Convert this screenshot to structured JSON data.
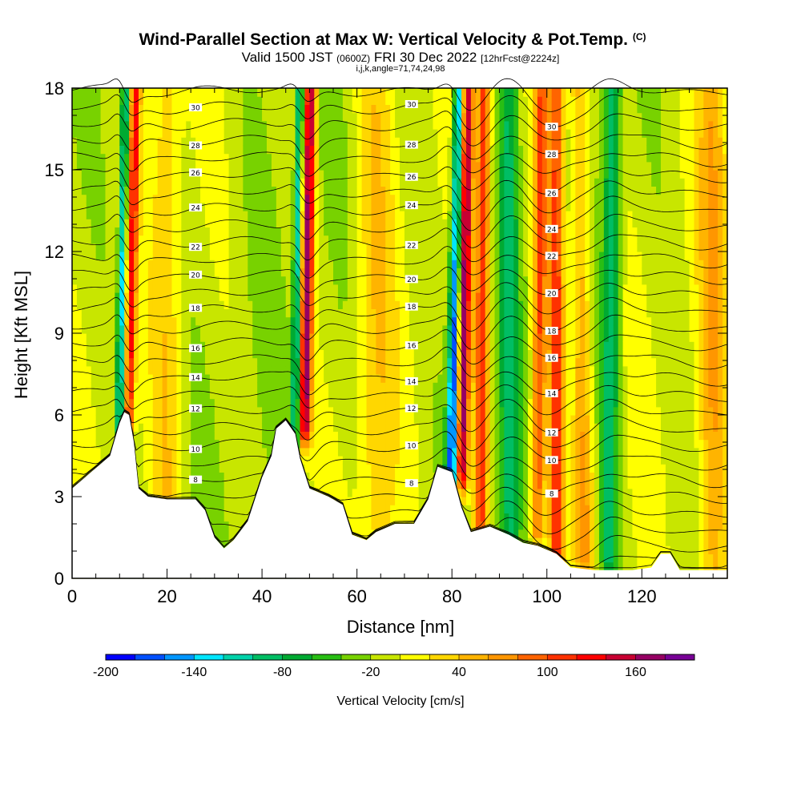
{
  "chart_data": {
    "type": "heatmap",
    "title": "Wind-Parallel Section at Max W: Vertical Velocity & Pot.Temp.",
    "title_tag": "(C)",
    "subtitle": {
      "valid_prefix": "Valid 1500 JST",
      "utc": "(0600Z)",
      "date": "FRI 30 Dec 2022",
      "forecast": "[12hrFcst@2224z]"
    },
    "indices": "i,j,k,angle=71,74,24,98",
    "xlabel": "Distance [nm]",
    "ylabel": "Height [Kft MSL]",
    "xlim": [
      0,
      138
    ],
    "ylim": [
      0,
      18
    ],
    "x_ticks": [
      "0",
      "20",
      "40",
      "60",
      "80",
      "100",
      "120"
    ],
    "x_tick_values": [
      0,
      20,
      40,
      60,
      80,
      100,
      120
    ],
    "y_ticks": [
      "0",
      "3",
      "6",
      "9",
      "12",
      "15",
      "18"
    ],
    "y_tick_values": [
      0,
      3,
      6,
      9,
      12,
      15,
      18
    ],
    "colorbar": {
      "title": "Vertical Velocity [cm/s]",
      "min": -200,
      "max": 200,
      "step": 20,
      "labels": [
        "-200",
        "-140",
        "-80",
        "-20",
        "40",
        "100",
        "160"
      ],
      "label_values": [
        -200,
        -140,
        -80,
        -20,
        40,
        100,
        160
      ],
      "colors": [
        "#0000ff",
        "#0050ff",
        "#0096ff",
        "#00e6ff",
        "#00d2aa",
        "#00be64",
        "#00aa32",
        "#28be14",
        "#78d200",
        "#c8e600",
        "#ffff00",
        "#ffd700",
        "#ffb400",
        "#ff9600",
        "#ff6400",
        "#ff3200",
        "#ff0000",
        "#c80032",
        "#960064",
        "#780096"
      ]
    },
    "theta_contour_labels": [
      "8",
      "10",
      "12",
      "14",
      "16",
      "18",
      "20",
      "22",
      "24",
      "26",
      "28",
      "30"
    ],
    "terrain_height_kft": [
      [
        0,
        3.3
      ],
      [
        2,
        3.6
      ],
      [
        4,
        3.9
      ],
      [
        6,
        4.2
      ],
      [
        8,
        4.5
      ],
      [
        9,
        5.1
      ],
      [
        10,
        5.7
      ],
      [
        11,
        6.1
      ],
      [
        12,
        6.0
      ],
      [
        13,
        5.0
      ],
      [
        14,
        3.3
      ],
      [
        16,
        3.0
      ],
      [
        20,
        2.9
      ],
      [
        26,
        2.9
      ],
      [
        28,
        2.5
      ],
      [
        30,
        1.5
      ],
      [
        32,
        1.1
      ],
      [
        34,
        1.4
      ],
      [
        37,
        2.1
      ],
      [
        40,
        3.7
      ],
      [
        42,
        4.5
      ],
      [
        43,
        5.5
      ],
      [
        45,
        5.8
      ],
      [
        47,
        5.3
      ],
      [
        48,
        4.4
      ],
      [
        50,
        3.3
      ],
      [
        54,
        3.0
      ],
      [
        57,
        2.7
      ],
      [
        59,
        1.6
      ],
      [
        62,
        1.4
      ],
      [
        64,
        1.7
      ],
      [
        68,
        2.0
      ],
      [
        72,
        2.0
      ],
      [
        75,
        2.9
      ],
      [
        77,
        4.1
      ],
      [
        80,
        3.9
      ],
      [
        82,
        2.6
      ],
      [
        84,
        1.7
      ],
      [
        88,
        1.9
      ],
      [
        92,
        1.6
      ],
      [
        95,
        1.3
      ],
      [
        98,
        1.2
      ],
      [
        102,
        0.9
      ],
      [
        105,
        0.4
      ],
      [
        110,
        0.3
      ],
      [
        118,
        0.3
      ],
      [
        122,
        0.4
      ],
      [
        124,
        0.9
      ],
      [
        126,
        0.9
      ],
      [
        128,
        0.3
      ],
      [
        138,
        0.3
      ]
    ],
    "vertical_velocity_features": [
      {
        "x": 12,
        "w": 130,
        "sigma_nm": 1.0,
        "slope_nm_per_kft": 0.12,
        "base_kft": 6
      },
      {
        "x": 10,
        "w": -120,
        "sigma_nm": 0.8,
        "slope_nm_per_kft": 0.1,
        "base_kft": 6
      },
      {
        "x": 49,
        "w": 180,
        "sigma_nm": 1.3,
        "slope_nm_per_kft": 0.1,
        "base_kft": 5.8
      },
      {
        "x": 47,
        "w": -110,
        "sigma_nm": 0.9,
        "slope_nm_per_kft": 0.08,
        "base_kft": 5.5
      },
      {
        "x": 82,
        "w": 190,
        "sigma_nm": 1.4,
        "slope_nm_per_kft": 0.08,
        "base_kft": 4
      },
      {
        "x": 80,
        "w": -190,
        "sigma_nm": 1.2,
        "slope_nm_per_kft": 0.12,
        "base_kft": 3.8
      },
      {
        "x": 86,
        "w": 120,
        "sigma_nm": 1.4,
        "slope_nm_per_kft": 0.05,
        "base_kft": 2
      },
      {
        "x": 98,
        "w": 110,
        "sigma_nm": 1.5,
        "slope_nm_per_kft": 0.06,
        "base_kft": 2
      },
      {
        "x": 102,
        "w": 120,
        "sigma_nm": 1.6,
        "slope_nm_per_kft": 0.0,
        "base_kft": 1
      },
      {
        "x": 108,
        "w": 70,
        "sigma_nm": 2.0,
        "slope_nm_per_kft": -0.08,
        "base_kft": 1
      },
      {
        "x": 113,
        "w": -80,
        "sigma_nm": 1.8,
        "slope_nm_per_kft": 0.05,
        "base_kft": 1
      },
      {
        "x": 135,
        "w": 60,
        "sigma_nm": 3.0,
        "slope_nm_per_kft": 0.0,
        "base_kft": 0
      },
      {
        "x": 92,
        "w": -70,
        "sigma_nm": 2.0,
        "slope_nm_per_kft": 0.0,
        "base_kft": 1
      },
      {
        "x": 20,
        "w": 40,
        "sigma_nm": 3.0,
        "slope_nm_per_kft": 0.0,
        "base_kft": 3
      },
      {
        "x": 64,
        "w": 40,
        "sigma_nm": 4.0,
        "slope_nm_per_kft": 0.0,
        "base_kft": 2
      }
    ]
  }
}
